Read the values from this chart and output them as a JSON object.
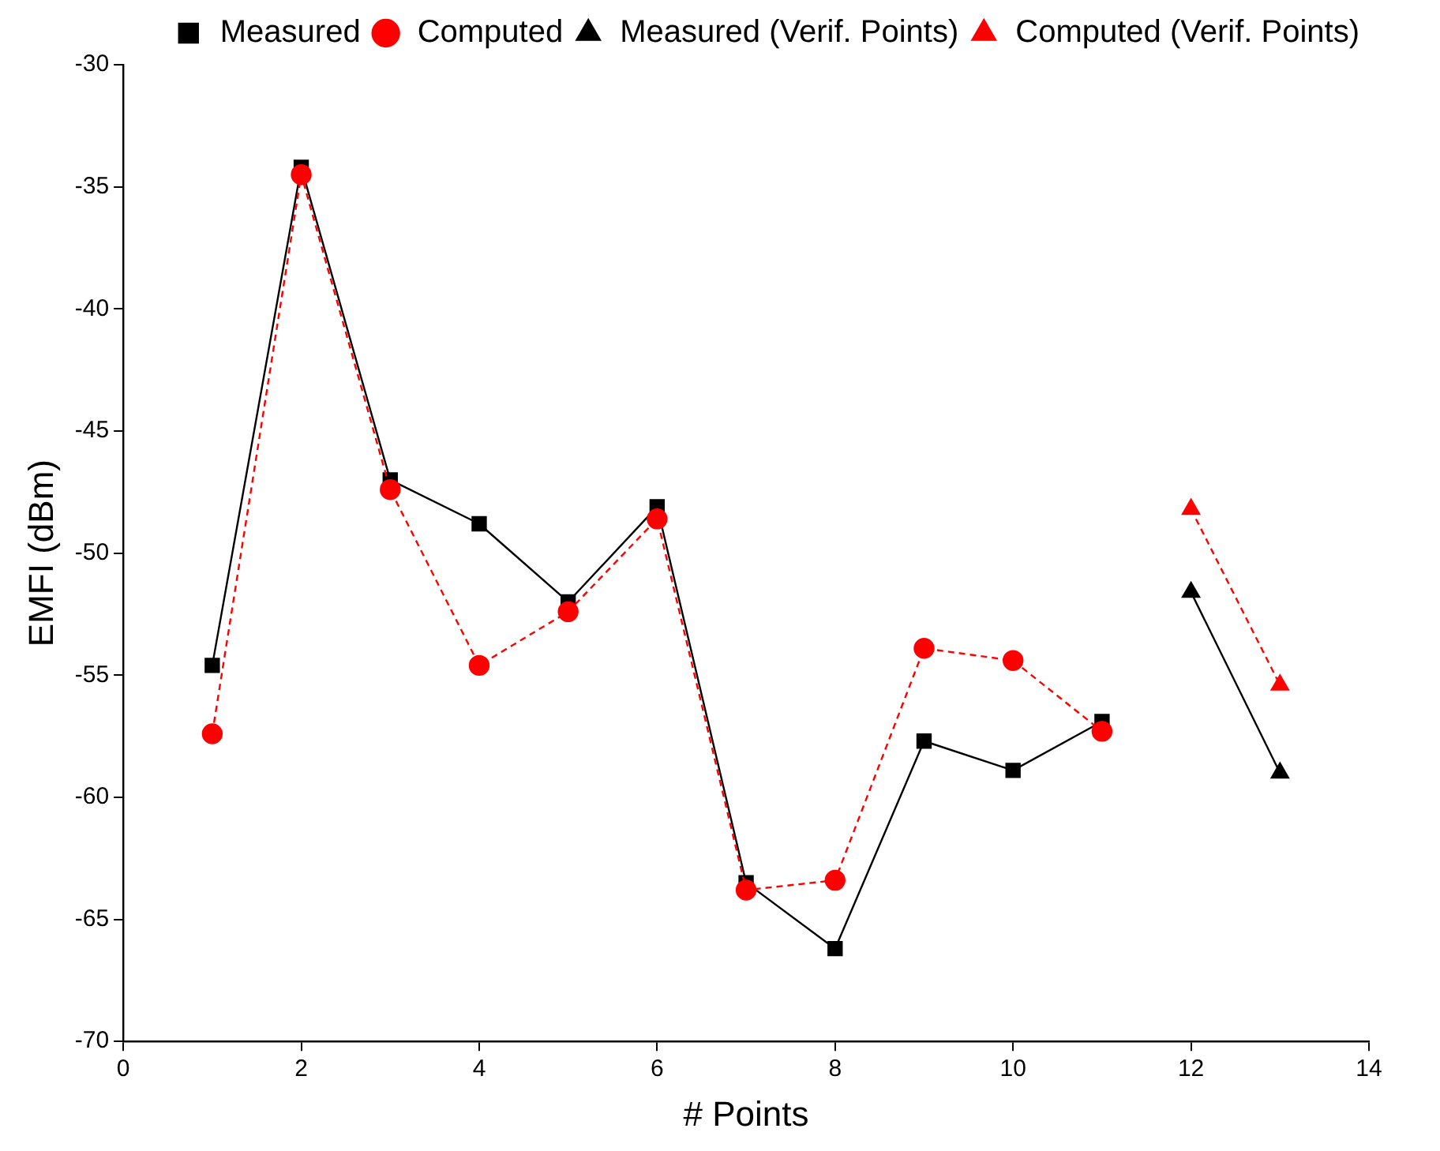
{
  "chart_data": {
    "type": "line",
    "xlabel": "# Points",
    "ylabel": "EMFI (dBm)",
    "xlim": [
      0,
      14
    ],
    "xticks": [
      0,
      2,
      4,
      6,
      8,
      10,
      12,
      14
    ],
    "ylim": [
      -70,
      -30
    ],
    "yticks": [
      -70,
      -65,
      -60,
      -55,
      -50,
      -45,
      -40,
      -35,
      -30
    ],
    "grid": false,
    "legend": "top right",
    "series": [
      {
        "name": "Measured",
        "color": "#000000",
        "marker": "square",
        "line_style": "solid",
        "x": [
          1,
          2,
          3,
          4,
          5,
          6,
          7,
          8,
          9,
          10,
          11
        ],
        "values": [
          -54.6,
          -34.2,
          -47.0,
          -48.8,
          -52.0,
          -48.1,
          -63.5,
          -66.2,
          -57.7,
          -58.9,
          -56.9
        ]
      },
      {
        "name": "Computed",
        "color": "#ff0000",
        "marker": "circle",
        "line_style": "dashed",
        "x": [
          1,
          2,
          3,
          4,
          5,
          6,
          7,
          8,
          9,
          10,
          11
        ],
        "values": [
          -57.4,
          -34.5,
          -47.4,
          -54.6,
          -52.4,
          -48.6,
          -63.8,
          -63.4,
          -53.9,
          -54.4,
          -57.3
        ]
      },
      {
        "name": "Measured (Verif. Points)",
        "color": "#000000",
        "marker": "triangle",
        "line_style": "solid",
        "x": [
          12,
          13
        ],
        "values": [
          -51.6,
          -59.0
        ]
      },
      {
        "name": "Computed (Verif. Points)",
        "color": "#ff0000",
        "marker": "triangle",
        "line_style": "dashed",
        "x": [
          12,
          13
        ],
        "values": [
          -48.2,
          -55.4
        ]
      }
    ]
  }
}
